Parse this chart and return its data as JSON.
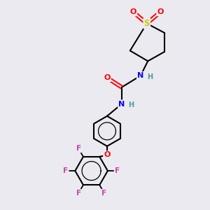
{
  "bg_color": "#eaeaf0",
  "atom_colors": {
    "C": "#000000",
    "H": "#4a9a9a",
    "N": "#0000ff",
    "O": "#ff0000",
    "S": "#cccc00",
    "F": "#cc44aa"
  },
  "bond_color": "#000000",
  "fig_w": 3.0,
  "fig_h": 3.0,
  "dpi": 100,
  "xlim": [
    0,
    10
  ],
  "ylim": [
    0,
    10
  ]
}
